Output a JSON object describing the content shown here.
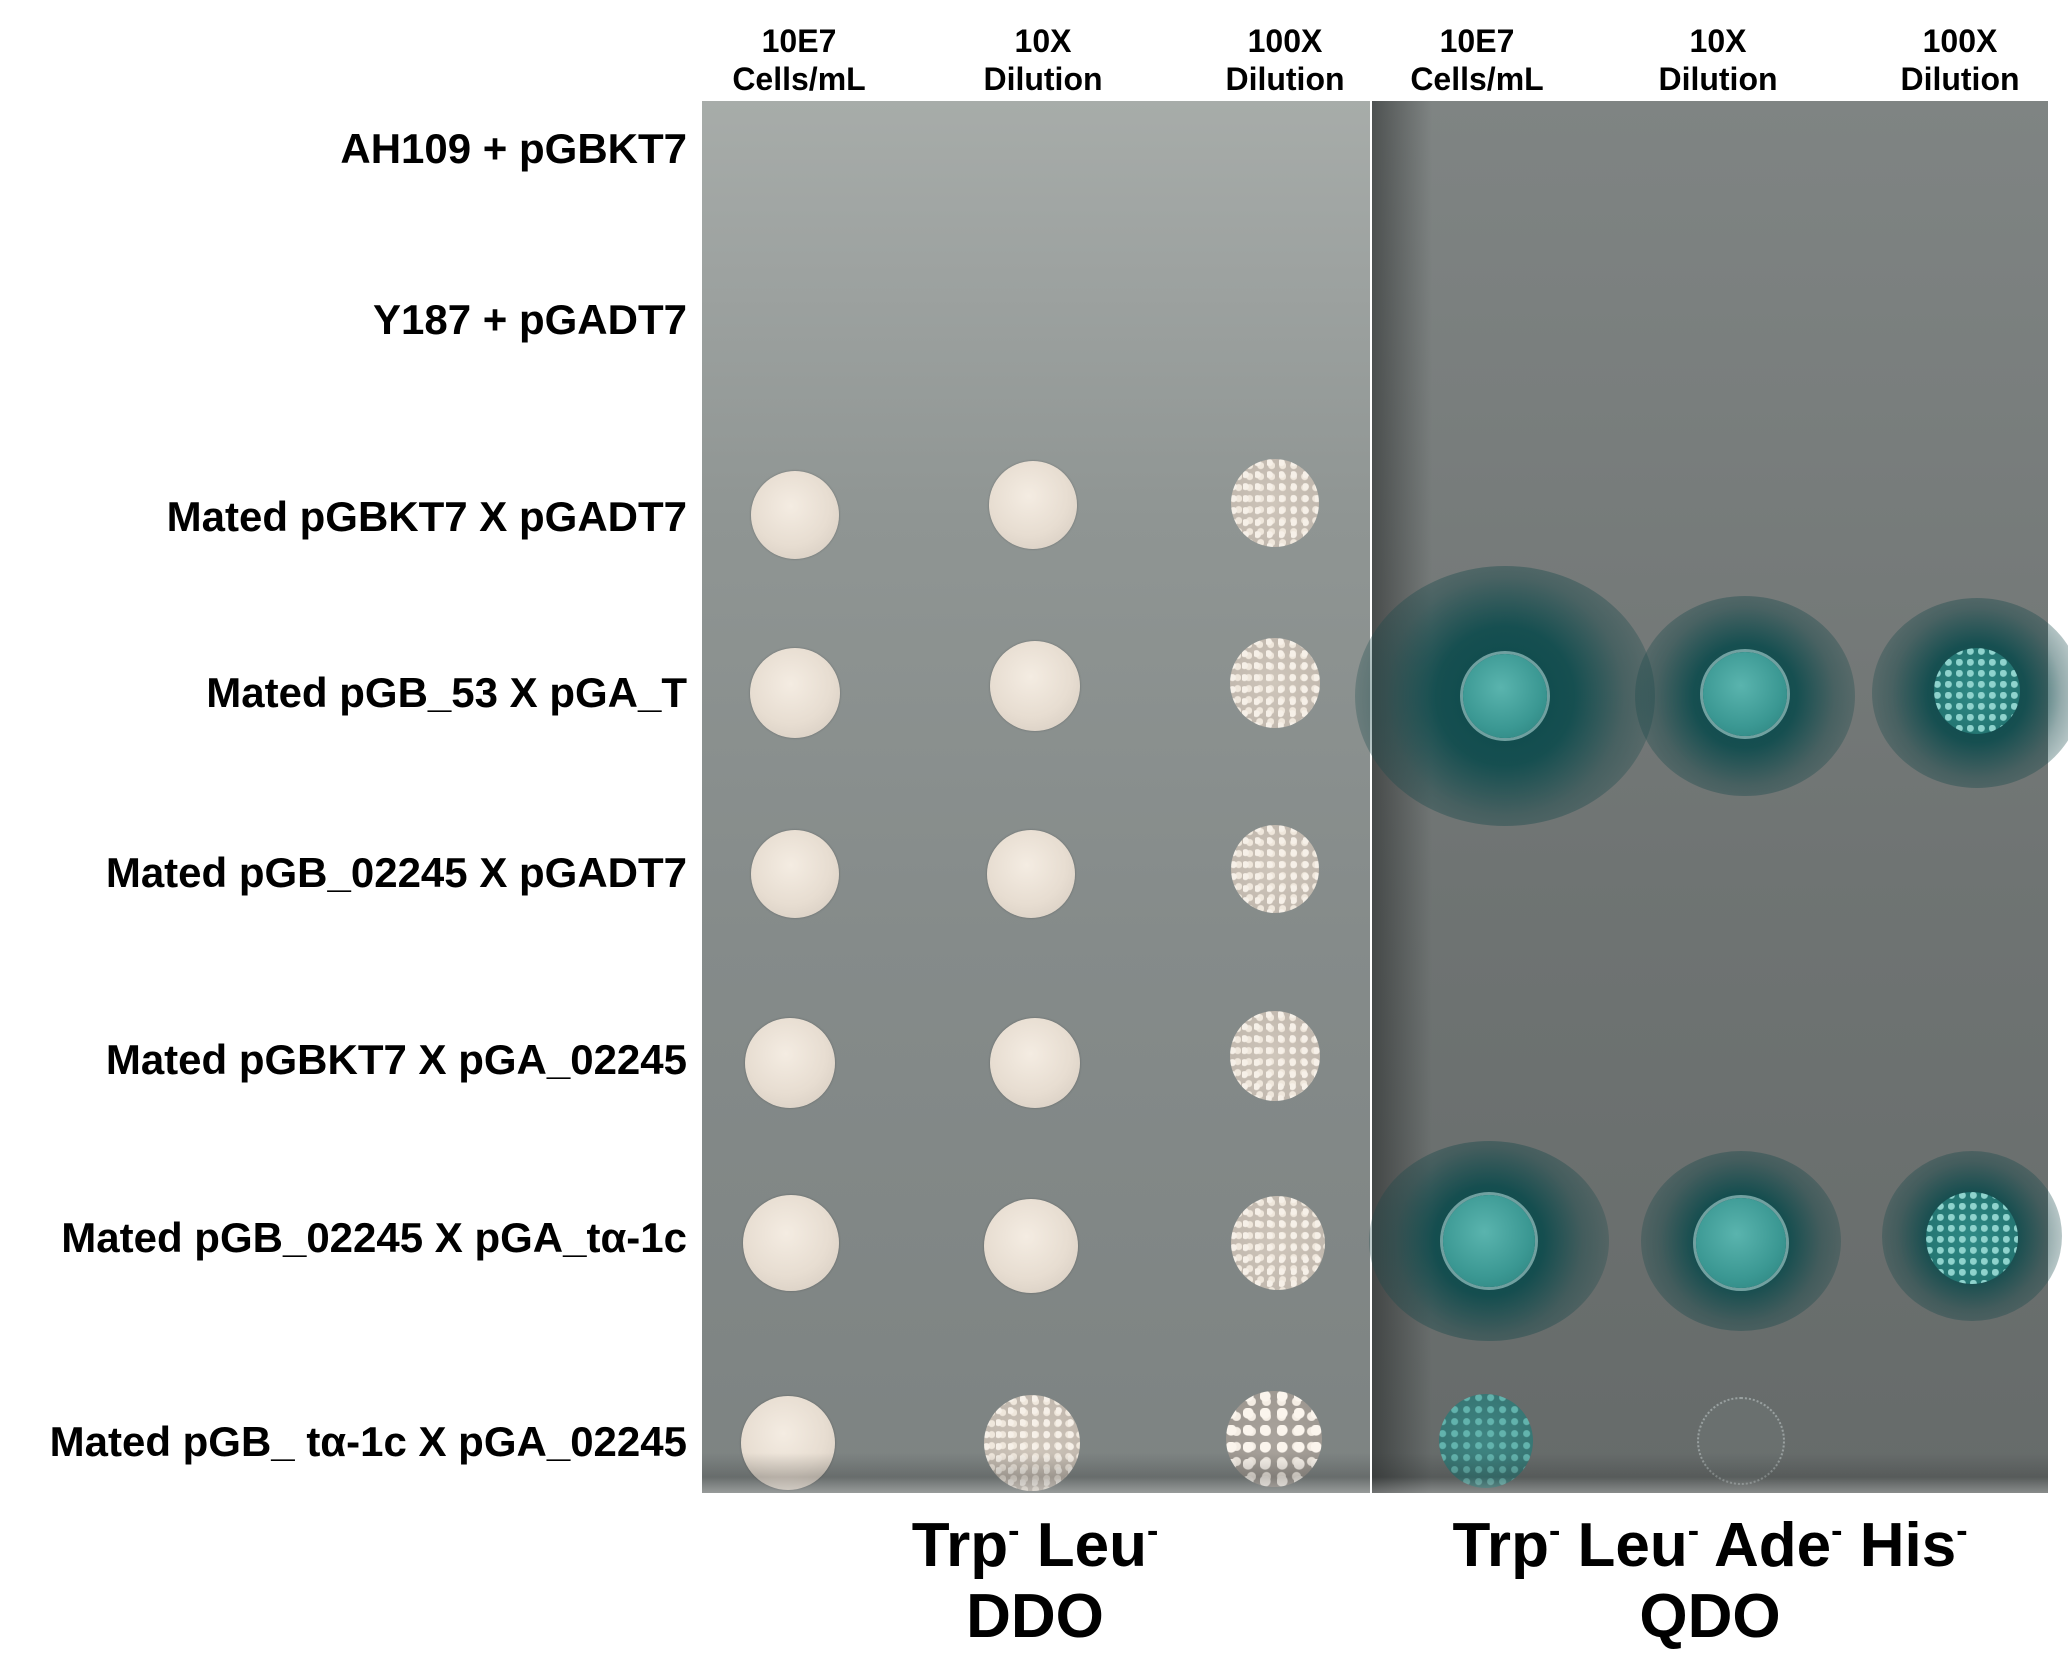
{
  "column_headers": [
    {
      "line1": "10E7",
      "line2": "Cells/mL"
    },
    {
      "line1": "10X",
      "line2": "Dilution"
    },
    {
      "line1": "100X",
      "line2": "Dilution"
    },
    {
      "line1": "10E7",
      "line2": "Cells/mL"
    },
    {
      "line1": "10X",
      "line2": "Dilution"
    },
    {
      "line1": "100X",
      "line2": "Dilution"
    }
  ],
  "rows": [
    "AH109 + pGBKT7",
    "Y187 + pGADT7",
    "Mated pGBKT7 X pGADT7",
    "Mated pGB_53 X pGA_T",
    "Mated pGB_02245 X pGADT7",
    "Mated pGBKT7 X pGA_02245",
    "Mated pGB_02245 X pGA_tα-1c",
    "Mated pGB_ tα-1c X pGA_02245"
  ],
  "media": [
    {
      "amino_acids": [
        "Trp",
        "Leu"
      ],
      "superscript": "-",
      "name": "DDO"
    },
    {
      "amino_acids": [
        "Trp",
        "Leu",
        "Ade",
        "His"
      ],
      "superscript": "-",
      "name": "QDO"
    }
  ],
  "colors": {
    "colony_white": "#e7ddd1",
    "colony_blue": "#3b9893",
    "halo_blue": "#064648",
    "plate_gray": "#858b8a"
  }
}
